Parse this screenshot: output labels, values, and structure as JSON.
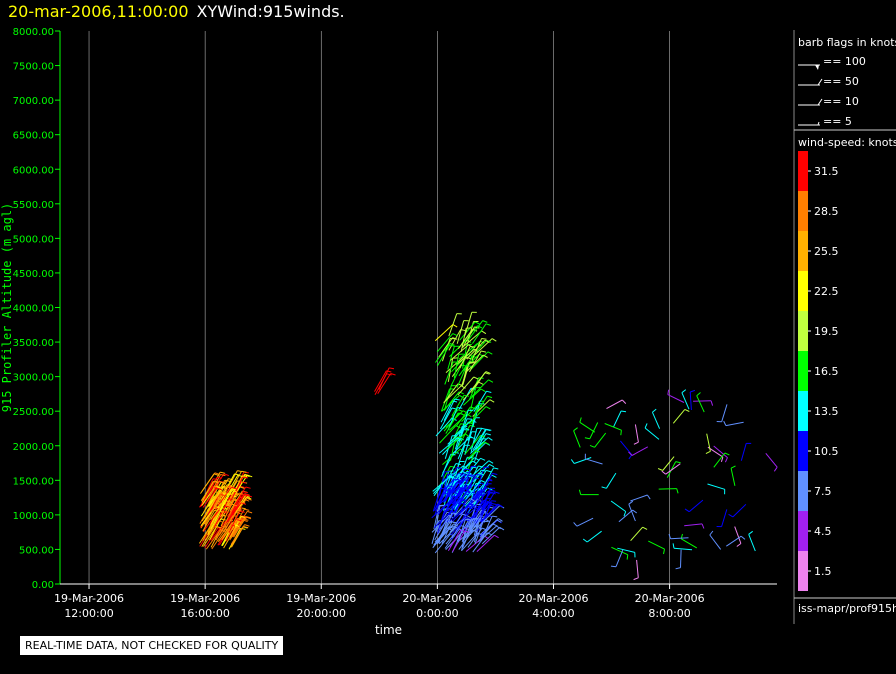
{
  "header": {
    "datetime": "20-mar-2006,11:00:00",
    "title": "XYWind:915winds."
  },
  "colors": {
    "background": "#000000",
    "axis": "#00ff00",
    "title_datetime": "#ffff00",
    "gridline": "#ffffff"
  },
  "chart_data": {
    "type": "scatter",
    "subtype": "wind-barb time-height",
    "xlabel": "time",
    "ylabel": "915 Profiler Altitude (m agl)",
    "ylim": [
      0,
      8000
    ],
    "y_ticks": [
      "0.00",
      "500.00",
      "1000.00",
      "1500.00",
      "2000.00",
      "2500.00",
      "3000.00",
      "3500.00",
      "4000.00",
      "4500.00",
      "5000.00",
      "5500.00",
      "6000.00",
      "6500.00",
      "7000.00",
      "7500.00",
      "8000.00"
    ],
    "x_ticks": [
      {
        "date": "19-Mar-2006",
        "time": "12:00:00",
        "hour": 12
      },
      {
        "date": "19-Mar-2006",
        "time": "16:00:00",
        "hour": 16
      },
      {
        "date": "19-Mar-2006",
        "time": "20:00:00",
        "hour": 20
      },
      {
        "date": "20-Mar-2006",
        "time": "0:00:00",
        "hour": 24
      },
      {
        "date": "20-Mar-2006",
        "time": "4:00:00",
        "hour": 28
      },
      {
        "date": "20-Mar-2006",
        "time": "8:00:00",
        "hour": 32
      }
    ],
    "xlim_hours": [
      11.0,
      35.7
    ],
    "grid": "vertical at x ticks",
    "barb_clusters": [
      {
        "t_start": 15.8,
        "t_end": 17.0,
        "alt_min": 500,
        "alt_max": 1350,
        "speed_min": 22,
        "speed_max": 33,
        "direction": "southwesterly"
      },
      {
        "t_start": 23.9,
        "t_end": 25.3,
        "alt_min": 1000,
        "alt_max": 3600,
        "speed_min": 10,
        "speed_max": 22,
        "direction": "mixed"
      },
      {
        "t_start": 23.8,
        "t_end": 25.6,
        "alt_min": 450,
        "alt_max": 1400,
        "speed_min": 5,
        "speed_max": 14,
        "direction": "mixed"
      },
      {
        "t_start": 21.8,
        "t_end": 22.0,
        "alt_min": 2600,
        "alt_max": 2900,
        "speed_min": 30,
        "speed_max": 32,
        "direction": "southwesterly"
      },
      {
        "t_start": 28.8,
        "t_end": 35.5,
        "alt_min": 300,
        "alt_max": 2650,
        "speed_min": 2,
        "speed_max": 20,
        "direction": "variable"
      }
    ]
  },
  "legend": {
    "barb_title": "barb flags in knots",
    "barbs": [
      {
        "label": "== 100"
      },
      {
        "label": "== 50"
      },
      {
        "label": "== 10"
      },
      {
        "label": "== 5"
      }
    ],
    "colorbar_title": "wind-speed: knots",
    "colorbar": [
      {
        "value": "31.5",
        "color": "#ff0000"
      },
      {
        "value": "28.5",
        "color": "#ff7f00"
      },
      {
        "value": "25.5",
        "color": "#ffb000"
      },
      {
        "value": "22.5",
        "color": "#ffff00"
      },
      {
        "value": "19.5",
        "color": "#bfff3f"
      },
      {
        "value": "16.5",
        "color": "#00ff00"
      },
      {
        "value": "13.5",
        "color": "#00ffff"
      },
      {
        "value": "10.5",
        "color": "#0000ff"
      },
      {
        "value": "7.5",
        "color": "#6090ff"
      },
      {
        "value": "4.5",
        "color": "#a020f0"
      },
      {
        "value": "1.5",
        "color": "#ee82ee"
      }
    ],
    "source": "iss-mapr/prof915h"
  },
  "footer": {
    "quality_note": "REAL-TIME DATA, NOT CHECKED FOR QUALITY"
  }
}
